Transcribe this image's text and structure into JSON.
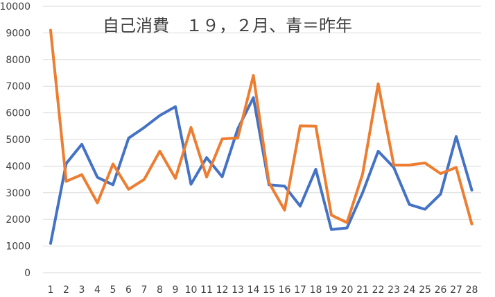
{
  "chart_data": {
    "type": "line",
    "title": "自己消費　１９，２月、青＝昨年",
    "xlabel": "",
    "ylabel": "",
    "categories": [
      "1",
      "2",
      "3",
      "4",
      "5",
      "6",
      "7",
      "8",
      "9",
      "10",
      "11",
      "12",
      "13",
      "14",
      "15",
      "16",
      "17",
      "18",
      "19",
      "20",
      "21",
      "22",
      "23",
      "24",
      "25",
      "26",
      "27",
      "28"
    ],
    "ylim": [
      0,
      10000
    ],
    "yticks": [
      "0",
      "1000",
      "2000",
      "3000",
      "4000",
      "5000",
      "6000",
      "7000",
      "8000",
      "9000",
      "10000"
    ],
    "grid": true,
    "legend": "none",
    "series": [
      {
        "color": "#4472c4",
        "values": [
          1100,
          4100,
          4820,
          3580,
          3300,
          5050,
          5450,
          5900,
          6230,
          3320,
          4320,
          3600,
          5400,
          6570,
          3300,
          3250,
          2500,
          3880,
          1620,
          1680,
          3000,
          4560,
          3950,
          2560,
          2380,
          2950,
          5110,
          3100
        ]
      },
      {
        "color": "#ed7d31",
        "values": [
          9100,
          3430,
          3680,
          2620,
          4080,
          3130,
          3500,
          4560,
          3540,
          5450,
          3590,
          5020,
          5060,
          7400,
          3380,
          2350,
          5510,
          5500,
          2160,
          1880,
          3700,
          7090,
          4040,
          4040,
          4120,
          3720,
          3950,
          1830
        ]
      }
    ]
  }
}
